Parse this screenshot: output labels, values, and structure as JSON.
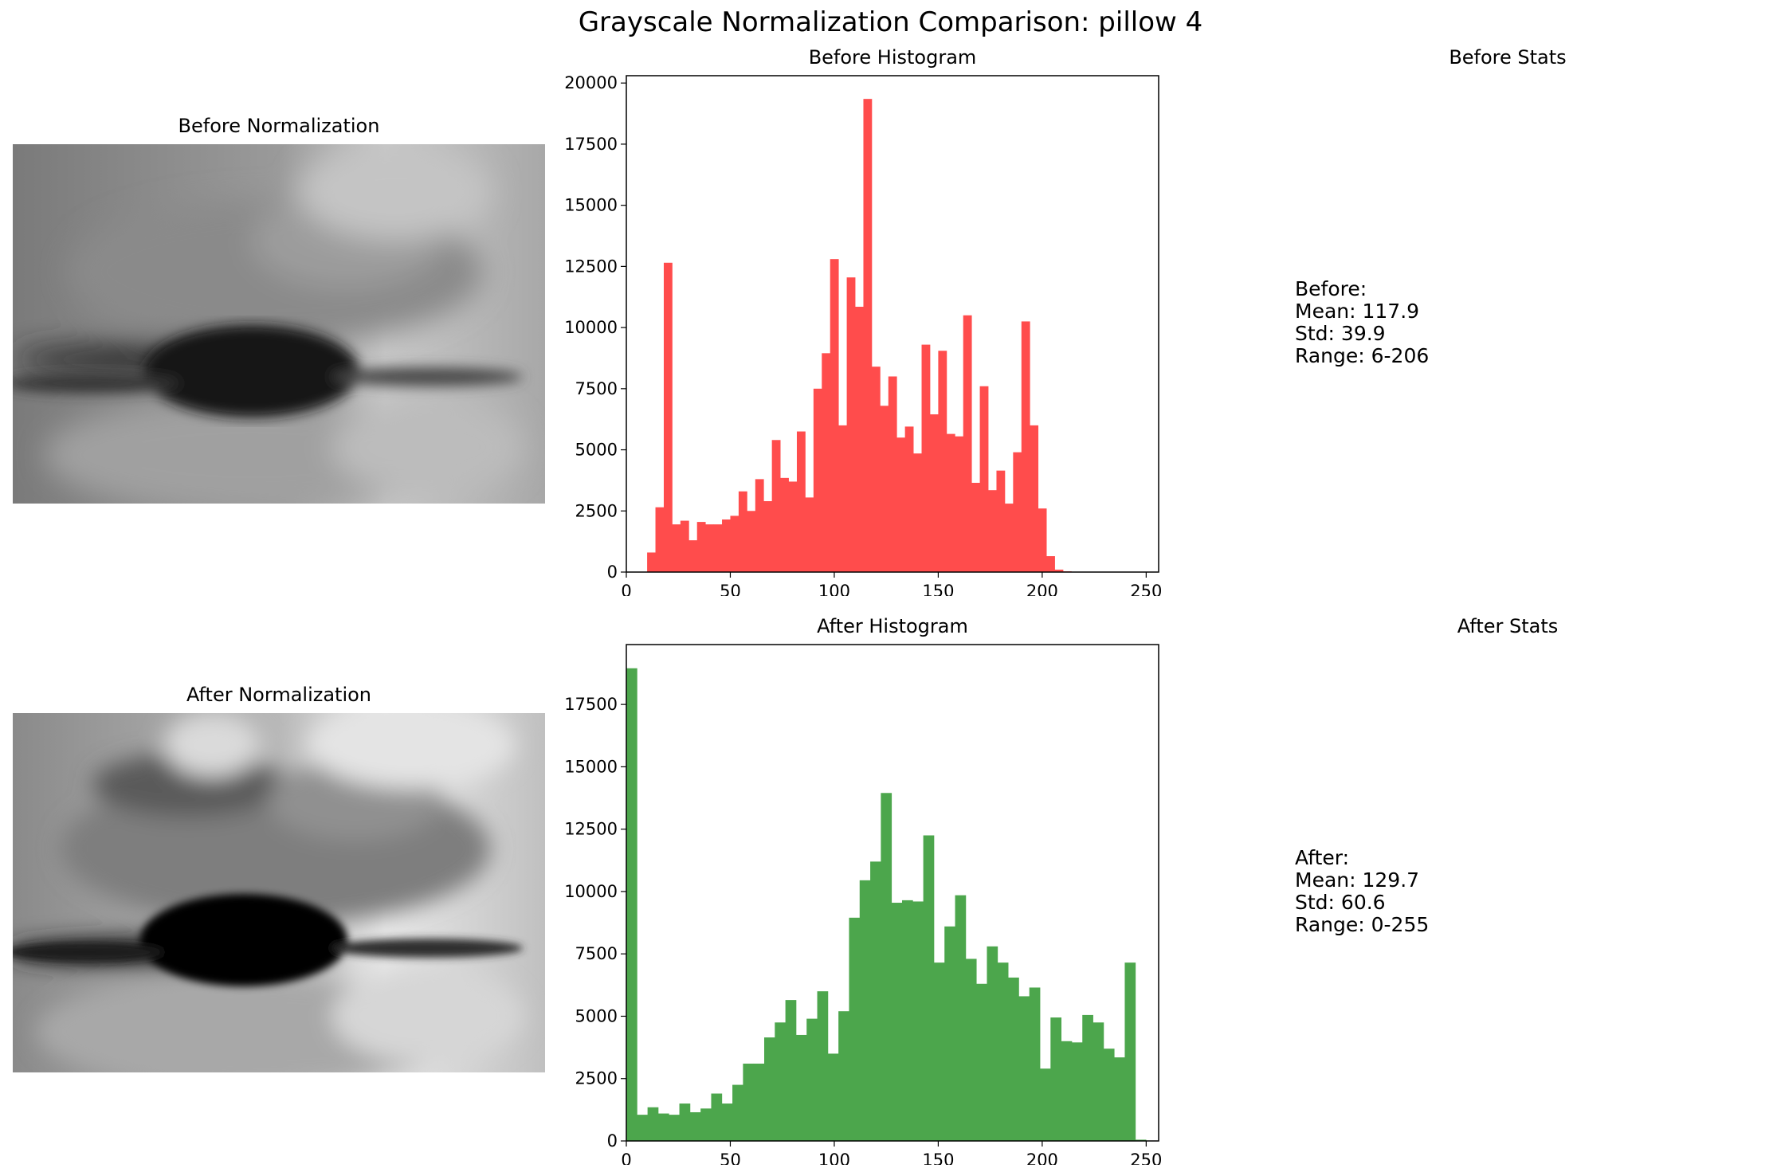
{
  "figure": {
    "title": "Grayscale Normalization Comparison: pillow 4"
  },
  "panels": {
    "before_image": {
      "title": "Before Normalization"
    },
    "after_image": {
      "title": "After Normalization"
    },
    "before_stats": {
      "title": "Before Stats",
      "text": "Before:\nMean: 117.9\nStd: 39.9\nRange: 6-206"
    },
    "after_stats": {
      "title": "After Stats",
      "text": "After:\nMean: 129.7\nStd: 60.6\nRange: 0-255"
    }
  },
  "chart_data": [
    {
      "type": "bar",
      "title": "Before Histogram",
      "xlabel": "",
      "ylabel": "",
      "xlim": [
        0,
        256
      ],
      "ylim": [
        0,
        20300
      ],
      "xticks": [
        0,
        50,
        100,
        150,
        200,
        250
      ],
      "yticks": [
        0,
        2500,
        5000,
        7500,
        10000,
        12500,
        15000,
        17500,
        20000
      ],
      "color": "#ff4c4c",
      "bin_width": 4,
      "bin_start": 10,
      "values": [
        800,
        2650,
        12650,
        1950,
        2100,
        1300,
        2050,
        1950,
        1950,
        2150,
        2300,
        3300,
        2500,
        3800,
        2900,
        5400,
        3850,
        3700,
        5750,
        3050,
        7500,
        8950,
        12800,
        6000,
        12050,
        10850,
        19350,
        8400,
        6800,
        8000,
        5500,
        5950,
        4850,
        9300,
        6450,
        9050,
        5650,
        5550,
        10500,
        3650,
        7600,
        3350,
        4150,
        2800,
        4900,
        10250,
        6000,
        2600,
        650,
        100,
        30
      ]
    },
    {
      "type": "bar",
      "title": "After Histogram",
      "xlabel": "",
      "ylabel": "",
      "xlim": [
        0,
        256
      ],
      "ylim": [
        0,
        19900
      ],
      "xticks": [
        0,
        50,
        100,
        150,
        200,
        250
      ],
      "yticks": [
        0,
        2500,
        5000,
        7500,
        10000,
        12500,
        15000,
        17500
      ],
      "color": "#4ca64c",
      "bin_width": 5.1,
      "bin_start": 0,
      "values": [
        18950,
        1050,
        1350,
        1100,
        1050,
        1500,
        1150,
        1300,
        1900,
        1500,
        2250,
        3100,
        3100,
        4150,
        4750,
        5650,
        4250,
        4900,
        6000,
        3500,
        5200,
        8950,
        10450,
        11200,
        13950,
        9550,
        9650,
        9600,
        12250,
        7150,
        8600,
        9850,
        7300,
        6300,
        7800,
        7150,
        6550,
        5800,
        6150,
        2900,
        4950,
        4000,
        3950,
        5050,
        4750,
        3700,
        3350,
        7150,
        50
      ]
    }
  ]
}
